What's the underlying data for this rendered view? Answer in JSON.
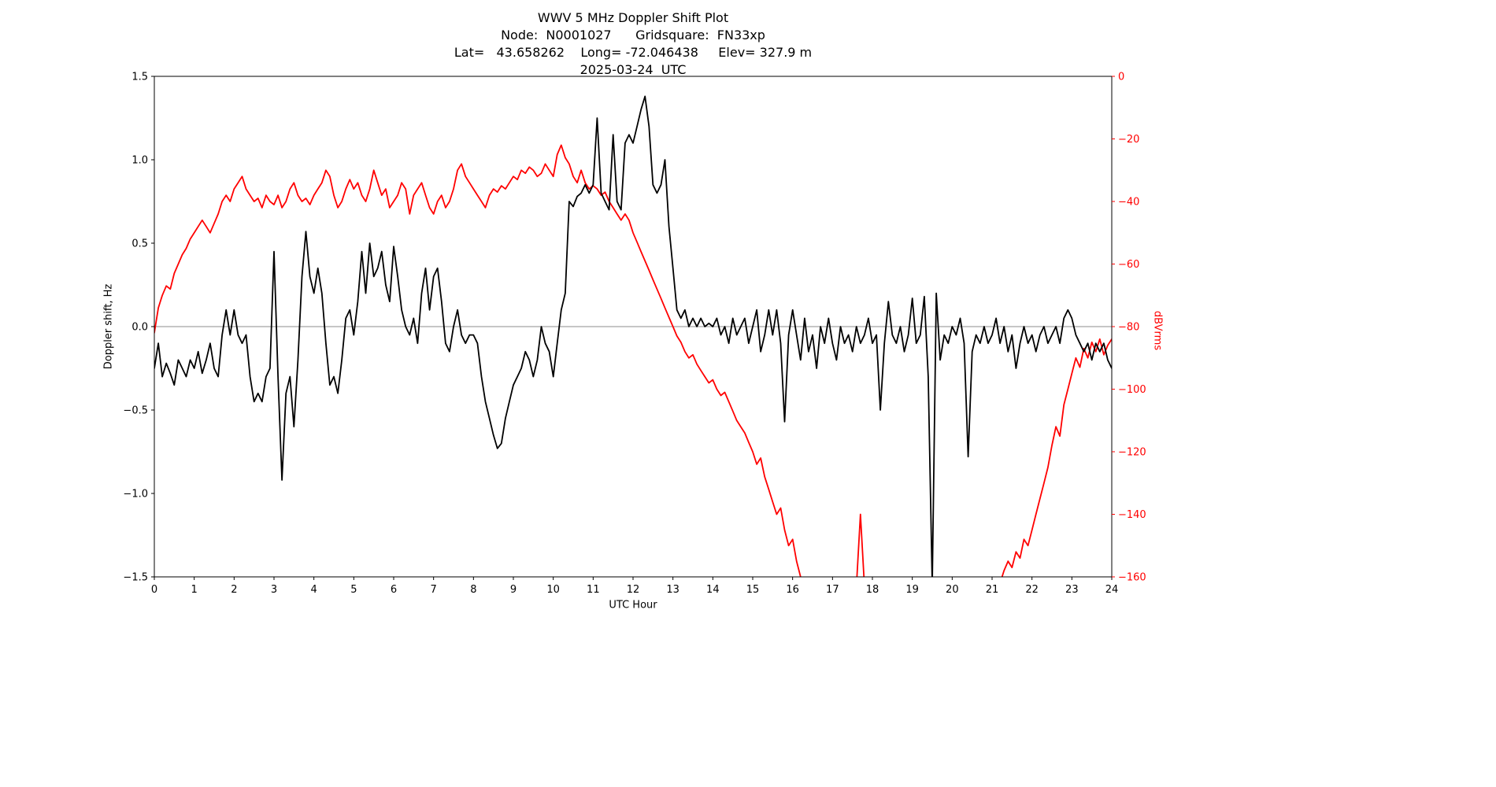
{
  "figure": {
    "title_line1": "WWV 5 MHz Doppler Shift Plot",
    "title_line2": "Node:  N0001027      Gridsquare:  FN33xp",
    "title_line3": "Lat=   43.658262    Long= -72.046438     Elev= 327.9 m",
    "title_line4": "2025-03-24  UTC"
  },
  "chart_data": {
    "type": "line",
    "title": "WWV 5 MHz Doppler Shift Plot",
    "subtitle_lines": [
      "Node:  N0001027      Gridsquare:  FN33xp",
      "Lat=   43.658262    Long= -72.046438     Elev= 327.9 m",
      "2025-03-24  UTC"
    ],
    "xlabel": "UTC Hour",
    "ylabel_left": "Doppler shift, Hz",
    "ylabel_right": "dBVrms",
    "xlim": [
      0,
      24
    ],
    "ylim_left": [
      -1.5,
      1.5
    ],
    "ylim_right": [
      -160,
      0
    ],
    "grid": false,
    "legend": "none",
    "x_ticks": [
      0,
      1,
      2,
      3,
      4,
      5,
      6,
      7,
      8,
      9,
      10,
      11,
      12,
      13,
      14,
      15,
      16,
      17,
      18,
      19,
      20,
      21,
      22,
      23,
      24
    ],
    "x_tick_labels": [
      "0",
      "1",
      "2",
      "3",
      "4",
      "5",
      "6",
      "7",
      "8",
      "9",
      "10",
      "11",
      "12",
      "13",
      "14",
      "15",
      "16",
      "17",
      "18",
      "19",
      "20",
      "21",
      "22",
      "23",
      "24"
    ],
    "y_ticks_left": {
      "values": [
        1.5,
        1.0,
        0.5,
        0.0,
        -0.5,
        -1.0,
        -1.5
      ],
      "labels": [
        "1.5",
        "1.0",
        "0.5",
        "0.0",
        "−0.5",
        "−1.0",
        "−1.5"
      ]
    },
    "y_ticks_right": {
      "values": [
        0,
        -20,
        -40,
        -60,
        -80,
        -100,
        -120,
        -140,
        -160
      ],
      "labels": [
        "0",
        "−20",
        "−40",
        "−60",
        "−80",
        "−100",
        "−120",
        "−140",
        "−160"
      ]
    },
    "zero_line": {
      "y": 0.0,
      "color": "#8c8c8c"
    },
    "x_start": 0,
    "x_step": 0.1,
    "series": [
      {
        "name": "dBVrms signal strength",
        "data_name": "dbvrms-line",
        "axis": "right",
        "color": "#ff0000",
        "values": [
          -82,
          -74,
          -70,
          -67,
          -68,
          -63,
          -60,
          -57,
          -55,
          -52,
          -50,
          -48,
          -46,
          -48,
          -50,
          -47,
          -44,
          -40,
          -38,
          -40,
          -36,
          -34,
          -32,
          -36,
          -38,
          -40,
          -39,
          -42,
          -38,
          -40,
          -41,
          -38,
          -42,
          -40,
          -36,
          -34,
          -38,
          -40,
          -39,
          -41,
          -38,
          -36,
          -34,
          -30,
          -32,
          -38,
          -42,
          -40,
          -36,
          -33,
          -36,
          -34,
          -38,
          -40,
          -36,
          -30,
          -34,
          -38,
          -36,
          -42,
          -40,
          -38,
          -34,
          -36,
          -44,
          -38,
          -36,
          -34,
          -38,
          -42,
          -44,
          -40,
          -38,
          -42,
          -40,
          -36,
          -30,
          -28,
          -32,
          -34,
          -36,
          -38,
          -40,
          -42,
          -38,
          -36,
          -37,
          -35,
          -36,
          -34,
          -32,
          -33,
          -30,
          -31,
          -29,
          -30,
          -32,
          -31,
          -28,
          -30,
          -32,
          -25,
          -22,
          -26,
          -28,
          -32,
          -34,
          -30,
          -34,
          -36,
          -35,
          -36,
          -38,
          -37,
          -40,
          -42,
          -44,
          -46,
          -44,
          -46,
          -50,
          -53,
          -56,
          -59,
          -62,
          -65,
          -68,
          -71,
          -74,
          -77,
          -80,
          -83,
          -85,
          -88,
          -90,
          -89,
          -92,
          -94,
          -96,
          -98,
          -97,
          -100,
          -102,
          -101,
          -104,
          -107,
          -110,
          -112,
          -114,
          -117,
          -120,
          -124,
          -122,
          -128,
          -132,
          -136,
          -140,
          -138,
          -145,
          -150,
          -148,
          -155,
          -160,
          -163,
          -165,
          -165,
          -165,
          -165,
          -165,
          -165,
          -165,
          -165,
          -165,
          -165,
          -165,
          -165,
          -163,
          -140,
          -163,
          -165,
          -165,
          -165,
          -165,
          -165,
          -165,
          -165,
          -165,
          -165,
          -165,
          -165,
          -165,
          -165,
          -165,
          -165,
          -165,
          -165,
          -165,
          -165,
          -165,
          -165,
          -165,
          -165,
          -165,
          -165,
          -165,
          -165,
          -165,
          -165,
          -165,
          -165,
          -165,
          -165,
          -162,
          -158,
          -155,
          -157,
          -152,
          -154,
          -148,
          -150,
          -145,
          -140,
          -135,
          -130,
          -125,
          -118,
          -112,
          -115,
          -105,
          -100,
          -95,
          -90,
          -93,
          -87,
          -90,
          -85,
          -88,
          -84,
          -89,
          -86,
          -84
        ]
      },
      {
        "name": "Doppler shift",
        "data_name": "doppler-shift-line",
        "axis": "left",
        "color": "#000000",
        "values": [
          -0.25,
          -0.1,
          -0.3,
          -0.22,
          -0.28,
          -0.35,
          -0.2,
          -0.25,
          -0.3,
          -0.2,
          -0.25,
          -0.15,
          -0.28,
          -0.2,
          -0.1,
          -0.25,
          -0.3,
          -0.05,
          0.1,
          -0.05,
          0.1,
          -0.05,
          -0.1,
          -0.05,
          -0.3,
          -0.45,
          -0.4,
          -0.45,
          -0.3,
          -0.25,
          0.45,
          -0.3,
          -0.92,
          -0.4,
          -0.3,
          -0.6,
          -0.2,
          0.3,
          0.57,
          0.3,
          0.2,
          0.35,
          0.2,
          -0.1,
          -0.35,
          -0.3,
          -0.4,
          -0.2,
          0.05,
          0.1,
          -0.05,
          0.15,
          0.45,
          0.2,
          0.5,
          0.3,
          0.35,
          0.45,
          0.25,
          0.15,
          0.48,
          0.3,
          0.1,
          0.0,
          -0.05,
          0.05,
          -0.1,
          0.2,
          0.35,
          0.1,
          0.3,
          0.35,
          0.15,
          -0.1,
          -0.15,
          0.0,
          0.1,
          -0.05,
          -0.1,
          -0.05,
          -0.05,
          -0.1,
          -0.3,
          -0.45,
          -0.55,
          -0.65,
          -0.73,
          -0.7,
          -0.55,
          -0.45,
          -0.35,
          -0.3,
          -0.25,
          -0.15,
          -0.2,
          -0.3,
          -0.2,
          0.0,
          -0.1,
          -0.15,
          -0.3,
          -0.1,
          0.1,
          0.2,
          0.75,
          0.72,
          0.78,
          0.8,
          0.85,
          0.8,
          0.85,
          1.25,
          0.8,
          0.75,
          0.7,
          1.15,
          0.75,
          0.7,
          1.1,
          1.15,
          1.1,
          1.2,
          1.3,
          1.38,
          1.2,
          0.85,
          0.8,
          0.85,
          1.0,
          0.6,
          0.35,
          0.1,
          0.05,
          0.1,
          0.0,
          0.05,
          0.0,
          0.05,
          0.0,
          0.02,
          0.0,
          0.05,
          -0.05,
          0.0,
          -0.1,
          0.05,
          -0.05,
          0.0,
          0.05,
          -0.1,
          0.0,
          0.1,
          -0.15,
          -0.05,
          0.1,
          -0.05,
          0.1,
          -0.1,
          -0.57,
          -0.05,
          0.1,
          -0.05,
          -0.2,
          0.05,
          -0.15,
          -0.05,
          -0.25,
          0.0,
          -0.1,
          0.05,
          -0.1,
          -0.2,
          0.0,
          -0.1,
          -0.05,
          -0.15,
          0.0,
          -0.1,
          -0.05,
          0.05,
          -0.1,
          -0.05,
          -0.5,
          -0.1,
          0.15,
          -0.05,
          -0.1,
          0.0,
          -0.15,
          -0.05,
          0.17,
          -0.1,
          -0.05,
          0.18,
          -0.3,
          -1.55,
          0.2,
          -0.2,
          -0.05,
          -0.1,
          0.0,
          -0.05,
          0.05,
          -0.1,
          -0.78,
          -0.15,
          -0.05,
          -0.1,
          0.0,
          -0.1,
          -0.05,
          0.05,
          -0.1,
          0.0,
          -0.15,
          -0.05,
          -0.25,
          -0.1,
          0.0,
          -0.1,
          -0.05,
          -0.15,
          -0.05,
          0.0,
          -0.1,
          -0.05,
          0.0,
          -0.1,
          0.05,
          0.1,
          0.05,
          -0.05,
          -0.1,
          -0.15,
          -0.1,
          -0.2,
          -0.1,
          -0.15,
          -0.1,
          -0.2,
          -0.25
        ]
      }
    ]
  }
}
